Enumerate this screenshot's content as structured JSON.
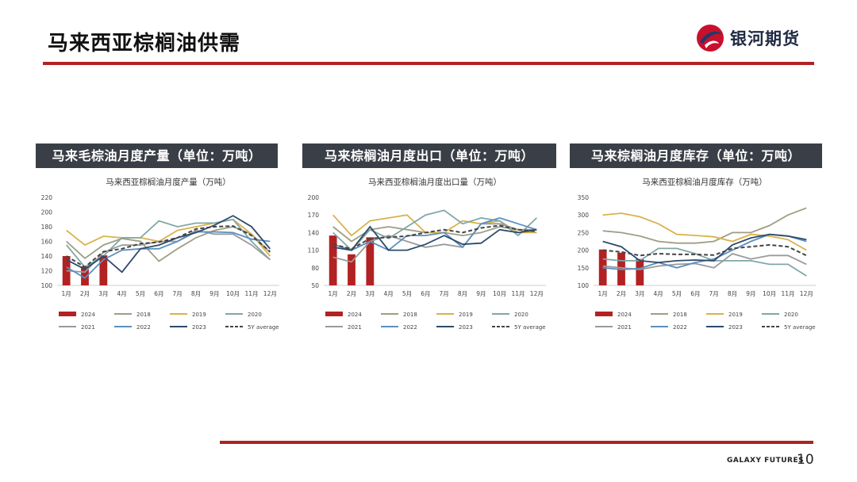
{
  "page": {
    "title": "马来西亚棕榈油供需",
    "page_number": "10"
  },
  "brand": {
    "name": "银河期货",
    "footer": "GALAXY FUTURES"
  },
  "colors": {
    "accent": "#b22222",
    "header_bg": "#3a3f47"
  },
  "panels": [
    {
      "header": "马来毛棕油月度产量（单位：万吨）"
    },
    {
      "header": "马来棕榈油月度出口（单位：万吨）"
    },
    {
      "header": "马来棕榈油月度库存（单位：万吨）"
    }
  ],
  "chart_data": [
    {
      "type": "bar+line",
      "title": "马来西亚棕榈油月度产量（万吨）",
      "categories": [
        "1月",
        "2月",
        "3月",
        "4月",
        "5月",
        "6月",
        "7月",
        "8月",
        "9月",
        "10月",
        "11月",
        "12月"
      ],
      "ylim": [
        100,
        220
      ],
      "yticks": [
        100,
        120,
        140,
        160,
        180,
        200,
        220
      ],
      "legend_position": "bottom",
      "series": [
        {
          "name": "2024",
          "kind": "bar",
          "color": "#b22222",
          "values": [
            140,
            126,
            141,
            null,
            null,
            null,
            null,
            null,
            null,
            null,
            null,
            null
          ]
        },
        {
          "name": "2018",
          "kind": "line",
          "color": "#9e9e84",
          "values": [
            160,
            137,
            155,
            164,
            160,
            133,
            150,
            165,
            175,
            180,
            170,
            145
          ]
        },
        {
          "name": "2019",
          "kind": "line",
          "color": "#d9b24c",
          "values": [
            175,
            155,
            167,
            165,
            165,
            160,
            175,
            180,
            185,
            190,
            170,
            140
          ]
        },
        {
          "name": "2020",
          "kind": "line",
          "color": "#7fa7a6",
          "values": [
            155,
            125,
            140,
            165,
            165,
            188,
            180,
            185,
            185,
            190,
            160,
            135
          ]
        },
        {
          "name": "2021",
          "kind": "line",
          "color": "#9a9a9a",
          "values": [
            120,
            118,
            145,
            155,
            155,
            160,
            160,
            175,
            170,
            170,
            155,
            135
          ]
        },
        {
          "name": "2022",
          "kind": "line",
          "color": "#5b8fbf",
          "values": [
            125,
            110,
            135,
            148,
            150,
            150,
            160,
            173,
            173,
            172,
            163,
            160
          ]
        },
        {
          "name": "2023",
          "kind": "line",
          "color": "#2e4a6b",
          "values": [
            135,
            122,
            140,
            118,
            150,
            155,
            165,
            172,
            182,
            195,
            180,
            150
          ]
        },
        {
          "name": "5Y average",
          "kind": "dashed",
          "color": "#444444",
          "values": [
            140,
            125,
            146,
            150,
            157,
            159,
            165,
            177,
            180,
            181,
            168,
            146
          ]
        }
      ]
    },
    {
      "type": "bar+line",
      "title": "马来西亚棕榈油月度出口量（万吨）",
      "categories": [
        "1月",
        "2月",
        "3月",
        "4月",
        "5月",
        "6月",
        "7月",
        "8月",
        "9月",
        "10月",
        "11月",
        "12月"
      ],
      "ylim": [
        50,
        200
      ],
      "yticks": [
        50,
        80,
        110,
        140,
        170,
        200
      ],
      "legend_position": "bottom",
      "series": [
        {
          "name": "2024",
          "kind": "bar",
          "color": "#b22222",
          "values": [
            135,
            103,
            132,
            null,
            null,
            null,
            null,
            null,
            null,
            null,
            null,
            null
          ]
        },
        {
          "name": "2018",
          "kind": "line",
          "color": "#9e9e84",
          "values": [
            150,
            125,
            145,
            150,
            145,
            140,
            140,
            135,
            140,
            150,
            145,
            140
          ]
        },
        {
          "name": "2019",
          "kind": "line",
          "color": "#d9b24c",
          "values": [
            170,
            135,
            160,
            165,
            170,
            140,
            140,
            160,
            155,
            160,
            140,
            140
          ]
        },
        {
          "name": "2020",
          "kind": "line",
          "color": "#7fa7a6",
          "values": [
            140,
            110,
            145,
            130,
            150,
            170,
            178,
            155,
            165,
            160,
            135,
            165
          ]
        },
        {
          "name": "2021",
          "kind": "line",
          "color": "#9a9a9a",
          "values": [
            98,
            90,
            125,
            135,
            125,
            115,
            120,
            115,
            155,
            155,
            145,
            145
          ]
        },
        {
          "name": "2022",
          "kind": "line",
          "color": "#5b8fbf",
          "values": [
            120,
            110,
            125,
            110,
            135,
            135,
            140,
            115,
            155,
            165,
            155,
            145
          ]
        },
        {
          "name": "2023",
          "kind": "line",
          "color": "#2e4a6b",
          "values": [
            115,
            110,
            150,
            110,
            110,
            120,
            135,
            120,
            122,
            145,
            140,
            145
          ]
        },
        {
          "name": "5Y average",
          "kind": "dashed",
          "color": "#444444",
          "values": [
            120,
            112,
            130,
            132,
            134,
            140,
            145,
            140,
            148,
            152,
            145,
            142
          ]
        }
      ]
    },
    {
      "type": "bar+line",
      "title": "马来西亚棕榈油月度库存（万吨）",
      "categories": [
        "1月",
        "2月",
        "3月",
        "4月",
        "5月",
        "6月",
        "7月",
        "8月",
        "9月",
        "10月",
        "11月",
        "12月"
      ],
      "ylim": [
        100,
        350
      ],
      "yticks": [
        100,
        150,
        200,
        250,
        300,
        350
      ],
      "legend_position": "bottom",
      "series": [
        {
          "name": "2024",
          "kind": "bar",
          "color": "#b22222",
          "values": [
            202,
            193,
            175,
            null,
            null,
            null,
            null,
            null,
            null,
            null,
            null,
            null
          ]
        },
        {
          "name": "2018",
          "kind": "line",
          "color": "#9e9e84",
          "values": [
            255,
            250,
            240,
            225,
            220,
            220,
            225,
            250,
            250,
            270,
            300,
            320
          ]
        },
        {
          "name": "2019",
          "kind": "line",
          "color": "#d9b24c",
          "values": [
            300,
            305,
            295,
            275,
            245,
            242,
            238,
            225,
            245,
            240,
            230,
            200
          ]
        },
        {
          "name": "2020",
          "kind": "line",
          "color": "#7fa7a6",
          "values": [
            175,
            170,
            170,
            205,
            205,
            190,
            170,
            170,
            170,
            160,
            160,
            127
          ]
        },
        {
          "name": "2021",
          "kind": "line",
          "color": "#9a9a9a",
          "values": [
            155,
            150,
            145,
            155,
            160,
            162,
            150,
            190,
            175,
            185,
            185,
            160
          ]
        },
        {
          "name": "2022",
          "kind": "line",
          "color": "#5b8fbf",
          "values": [
            150,
            145,
            148,
            165,
            150,
            165,
            175,
            200,
            225,
            245,
            240,
            225
          ]
        },
        {
          "name": "2023",
          "kind": "line",
          "color": "#2e4a6b",
          "values": [
            225,
            210,
            170,
            165,
            170,
            172,
            170,
            215,
            235,
            245,
            240,
            230
          ]
        },
        {
          "name": "5Y average",
          "kind": "dashed",
          "color": "#444444",
          "values": [
            200,
            195,
            185,
            190,
            188,
            188,
            186,
            205,
            210,
            215,
            210,
            185
          ]
        }
      ]
    }
  ]
}
